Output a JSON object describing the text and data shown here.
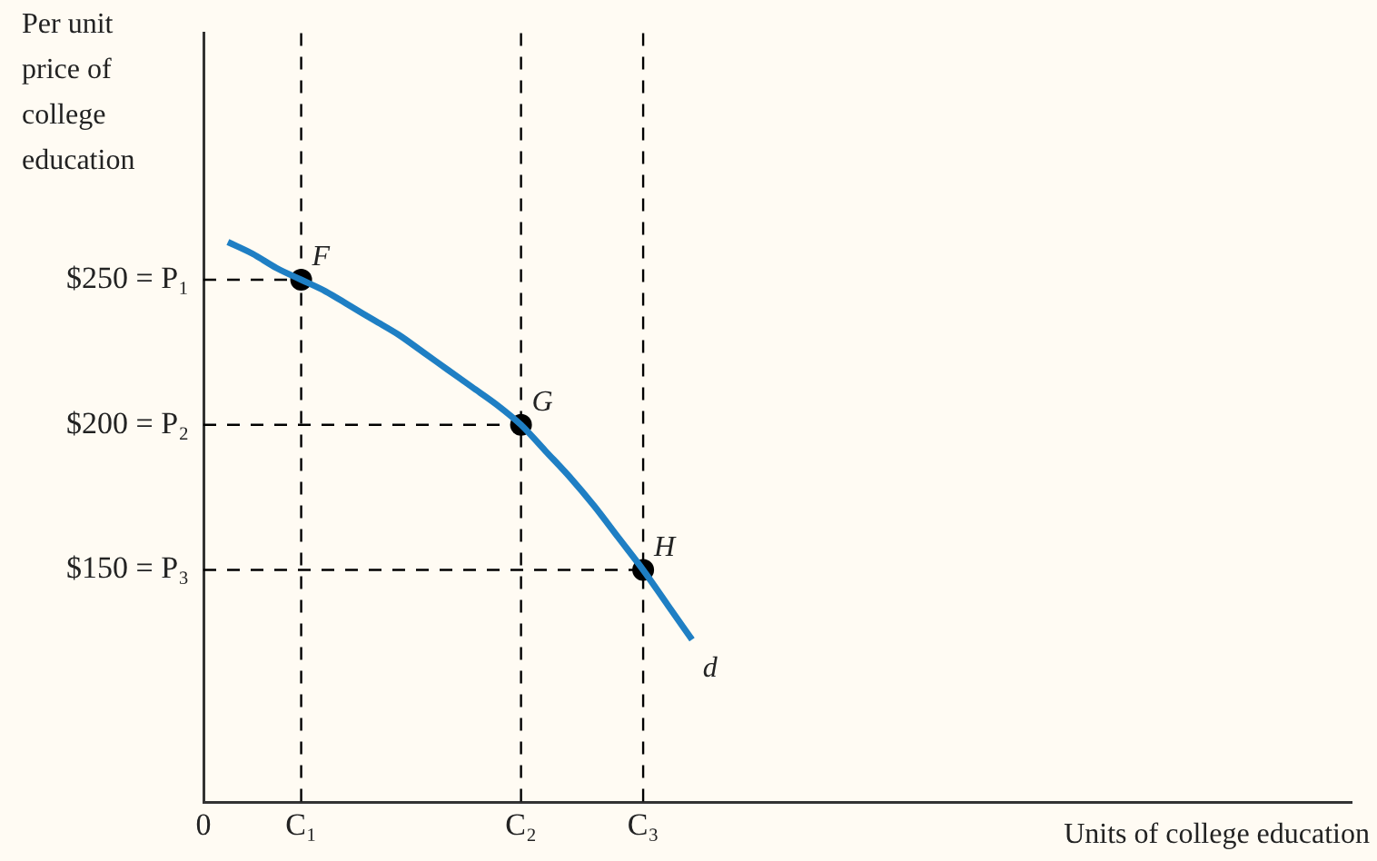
{
  "chart_data": {
    "type": "line",
    "ylabel": "Per unit price of college education",
    "xlabel": "Units of college education",
    "categories": [
      "0",
      null,
      null,
      null,
      "C₁",
      null,
      null,
      null,
      null,
      null,
      null,
      null,
      null,
      "C₂",
      null,
      null,
      null,
      null,
      "C₃",
      null,
      null,
      null,
      null,
      null,
      null,
      null,
      null,
      null,
      null,
      null,
      null,
      null,
      null,
      null,
      null,
      null,
      null,
      null,
      null,
      null,
      null,
      null,
      null,
      null,
      null,
      null,
      null,
      null
    ],
    "ylim": [
      70,
      335
    ],
    "yticks": [
      {
        "value": 150,
        "label": "$150 = P₃"
      },
      {
        "value": 200,
        "label": "$200 = P₂"
      },
      {
        "value": 250,
        "label": "$250 = P₁"
      }
    ],
    "series": [
      {
        "type": "line",
        "color": "#1f7fc4",
        "marker": "none",
        "line_style": "solid",
        "values": [
          null,
          263,
          259,
          254,
          250,
          246,
          241,
          236,
          231,
          225,
          219,
          213,
          207,
          200,
          191,
          182,
          172,
          161,
          150,
          138,
          126,
          null,
          null,
          null,
          null,
          null,
          null,
          null,
          null,
          null,
          null,
          null,
          null,
          null,
          null,
          null,
          null,
          null,
          null,
          null,
          null,
          null,
          null,
          null,
          null,
          null,
          null,
          null
        ]
      },
      {
        "type": "scatter",
        "color": "#000000",
        "marker": "circle",
        "values": [
          null,
          null,
          null,
          null,
          250,
          null,
          null,
          null,
          null,
          null,
          null,
          null,
          null,
          200,
          null,
          null,
          null,
          null,
          150,
          null,
          null,
          null,
          null,
          null,
          null,
          null,
          null,
          null,
          null,
          null,
          null,
          null,
          null,
          null,
          null,
          null,
          null,
          null,
          null,
          null,
          null,
          null,
          null,
          null,
          null,
          null,
          null,
          null
        ]
      },
      {
        "type": "line",
        "color": "#000000",
        "marker": "none",
        "line_style": "dashed",
        "values": [
          250,
          250,
          250,
          250,
          250,
          null,
          null,
          null,
          null,
          null,
          null,
          null,
          null,
          null,
          null,
          null,
          null,
          null,
          null,
          null,
          null,
          null,
          null,
          null,
          null,
          null,
          null,
          null,
          null,
          null,
          null,
          null,
          null,
          null,
          null,
          null,
          null,
          null,
          null,
          null,
          null,
          null,
          null,
          null,
          null,
          null,
          null,
          null
        ]
      },
      {
        "type": "line",
        "color": "#000000",
        "marker": "none",
        "line_style": "dashed",
        "values": [
          200,
          200,
          200,
          200,
          200,
          200,
          200,
          200,
          200,
          200,
          200,
          200,
          200,
          200,
          null,
          null,
          null,
          null,
          null,
          null,
          null,
          null,
          null,
          null,
          null,
          null,
          null,
          null,
          null,
          null,
          null,
          null,
          null,
          null,
          null,
          null,
          null,
          null,
          null,
          null,
          null,
          null,
          null,
          null,
          null,
          null,
          null,
          null
        ]
      },
      {
        "type": "line",
        "color": "#000000",
        "marker": "none",
        "line_style": "dashed",
        "values": [
          150,
          150,
          150,
          150,
          150,
          150,
          150,
          150,
          150,
          150,
          150,
          150,
          150,
          150,
          150,
          150,
          150,
          150,
          150,
          null,
          null,
          null,
          null,
          null,
          null,
          null,
          null,
          null,
          null,
          null,
          null,
          null,
          null,
          null,
          null,
          null,
          null,
          null,
          null,
          null,
          null,
          null,
          null,
          null,
          null,
          null,
          null,
          null
        ]
      }
    ],
    "ref_lines": [
      {
        "axis": "x",
        "value": "C₁",
        "color": "#000000",
        "line_style": "dashed"
      },
      {
        "axis": "x",
        "value": "C₂",
        "color": "#000000",
        "line_style": "dashed"
      },
      {
        "axis": "x",
        "value": "C₃",
        "color": "#000000",
        "line_style": "dashed"
      }
    ],
    "annotations": [
      {
        "text": "F",
        "x": "C₁",
        "y": 250
      },
      {
        "text": "G",
        "x": "C₂",
        "y": 200
      },
      {
        "text": "H",
        "x": "C₃",
        "y": 150
      },
      "d"
    ]
  }
}
